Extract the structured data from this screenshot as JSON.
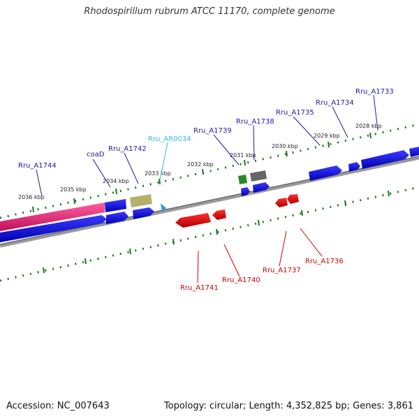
{
  "title": "Rhodospirillum rubrum ATCC 11170, complete genome",
  "footer": {
    "accession": "Accession: NC_007643",
    "topology": "Topology: circular; Length: 4,352,825 bp; Genes: 3,861"
  },
  "colors": {
    "forward_label": "#1a1aa6",
    "reverse_label": "#cc0000",
    "rna_label": "#33bbdd",
    "tick": "#1a7a1a",
    "backbone": "#808080",
    "cds_forward": "#0000ee",
    "cds_reverse": "#ee0000",
    "pink": "#ff3d8b",
    "olive": "#b5b06a",
    "green": "#2a8a2a",
    "grey": "#707070"
  },
  "kbp_labels": [
    "2036 kbp",
    "2035 kbp",
    "2034 kbp",
    "2033 kbp",
    "2032 kbp",
    "2031 kbp",
    "2030 kbp",
    "2029 kbp",
    "2028 kbp"
  ],
  "forward_labels": [
    "Rru_A1744",
    "coaD",
    "Rru_A1742",
    "Rru_AR0034",
    "Rru_A1739",
    "Rru_A1738",
    "Rru_A1735",
    "Rru_A1734",
    "Rru_A1733"
  ],
  "reverse_labels": [
    "Rru_A1741",
    "Rru_A1740",
    "Rru_A1737",
    "Rru_A1736"
  ]
}
